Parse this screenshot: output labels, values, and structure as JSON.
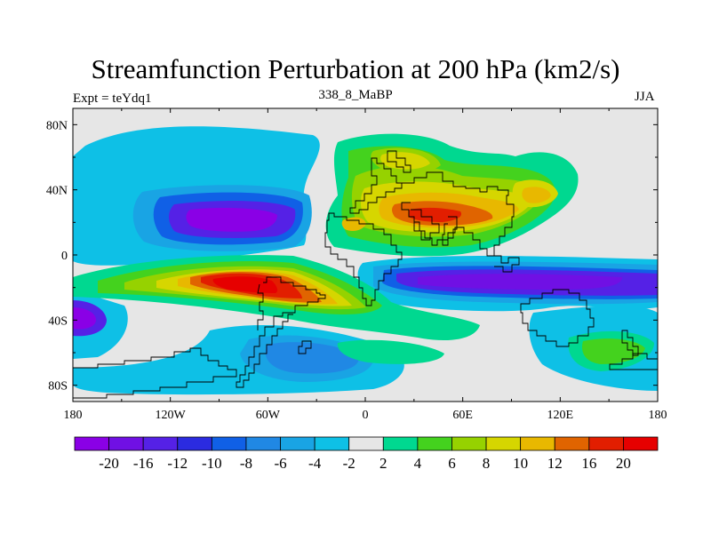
{
  "chart_data": {
    "type": "heatmap",
    "title": "Streamfunction Perturbation at 200 hPa (km2/s)",
    "subtitle_left": "Expt = teYdq1",
    "subtitle_center": "338_8_MaBP",
    "subtitle_right": "JJA",
    "xlabel": "",
    "ylabel": "",
    "xlim": [
      -180,
      180
    ],
    "ylim": [
      -90,
      90
    ],
    "x_ticks": [
      {
        "value": -180,
        "label": "180"
      },
      {
        "value": -120,
        "label": "120W"
      },
      {
        "value": -60,
        "label": "60W"
      },
      {
        "value": 0,
        "label": "0"
      },
      {
        "value": 60,
        "label": "60E"
      },
      {
        "value": 120,
        "label": "120E"
      },
      {
        "value": 180,
        "label": "180"
      }
    ],
    "y_ticks": [
      {
        "value": 80,
        "label": "80N"
      },
      {
        "value": 40,
        "label": "40N"
      },
      {
        "value": 0,
        "label": "0"
      },
      {
        "value": -40,
        "label": "40S"
      },
      {
        "value": -80,
        "label": "80S"
      }
    ],
    "colorbar": {
      "boundaries": [
        -20,
        -16,
        -12,
        -10,
        -8,
        -6,
        -4,
        -2,
        2,
        4,
        6,
        8,
        10,
        12,
        16,
        20
      ],
      "labels": [
        "-20",
        "-16",
        "-12",
        "-10",
        "-8",
        "-6",
        "-4",
        "-2",
        "2",
        "4",
        "6",
        "8",
        "10",
        "12",
        "16",
        "20"
      ],
      "colors": [
        "#8a00e6",
        "#7010e4",
        "#5521e6",
        "#2b2be0",
        "#1060e6",
        "#2088e4",
        "#19a4e4",
        "#0ec0e6",
        "#e6e6e6",
        "#00d890",
        "#44d21e",
        "#96d200",
        "#d6d600",
        "#e8b800",
        "#e06400",
        "#e21e00",
        "#e60000"
      ]
    },
    "features": [
      {
        "name": "negative-cell-south-pacific-north",
        "lon": -110,
        "lat": 18,
        "value": -18
      },
      {
        "name": "negative-cell-far-west-south",
        "lon": -178,
        "lat": -38,
        "value": -18
      },
      {
        "name": "negative-band-south-indian-pacific",
        "lon": 90,
        "lat": -20,
        "value": -16
      },
      {
        "name": "negative-cell-south-atlantic",
        "lon": -30,
        "lat": -62,
        "value": -6
      },
      {
        "name": "positive-cell-south-america",
        "lon": -65,
        "lat": -18,
        "value": 20
      },
      {
        "name": "positive-cell-arabia",
        "lon": 45,
        "lat": 20,
        "value": 16
      },
      {
        "name": "positive-cell-east-asia",
        "lon": 100,
        "lat": 35,
        "value": 14
      },
      {
        "name": "positive-cell-north-atlantic",
        "lon": 20,
        "lat": 55,
        "value": 10
      },
      {
        "name": "positive-cell-south-pacific",
        "lon": 150,
        "lat": -62,
        "value": 4
      }
    ]
  }
}
